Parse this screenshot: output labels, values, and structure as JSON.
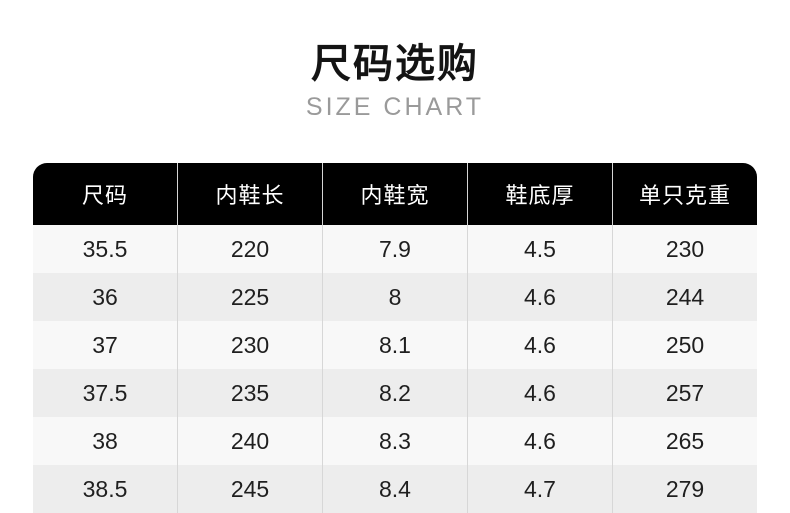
{
  "header": {
    "title": "尺码选购",
    "subtitle": "SIZE CHART"
  },
  "colors": {
    "page_bg": "#ffffff",
    "title_text": "#141414",
    "subtitle_text": "#9a9a9a",
    "table_header_bg": "#000000",
    "table_header_text": "#ffffff",
    "row_light": "#f8f8f8",
    "row_dark": "#ededed",
    "column_divider": "#d5d5d5",
    "cell_text": "#1f1f1f"
  },
  "chart_data": {
    "type": "table",
    "title": "尺码选购",
    "subtitle": "SIZE CHART",
    "columns": [
      "尺码",
      "内鞋长",
      "内鞋宽",
      "鞋底厚",
      "单只克重"
    ],
    "rows": [
      [
        "35.5",
        "220",
        "7.9",
        "4.5",
        "230"
      ],
      [
        "36",
        "225",
        "8",
        "4.6",
        "244"
      ],
      [
        "37",
        "230",
        "8.1",
        "4.6",
        "250"
      ],
      [
        "37.5",
        "235",
        "8.2",
        "4.6",
        "257"
      ],
      [
        "38",
        "240",
        "8.3",
        "4.6",
        "265"
      ],
      [
        "38.5",
        "245",
        "8.4",
        "4.7",
        "279"
      ]
    ]
  }
}
